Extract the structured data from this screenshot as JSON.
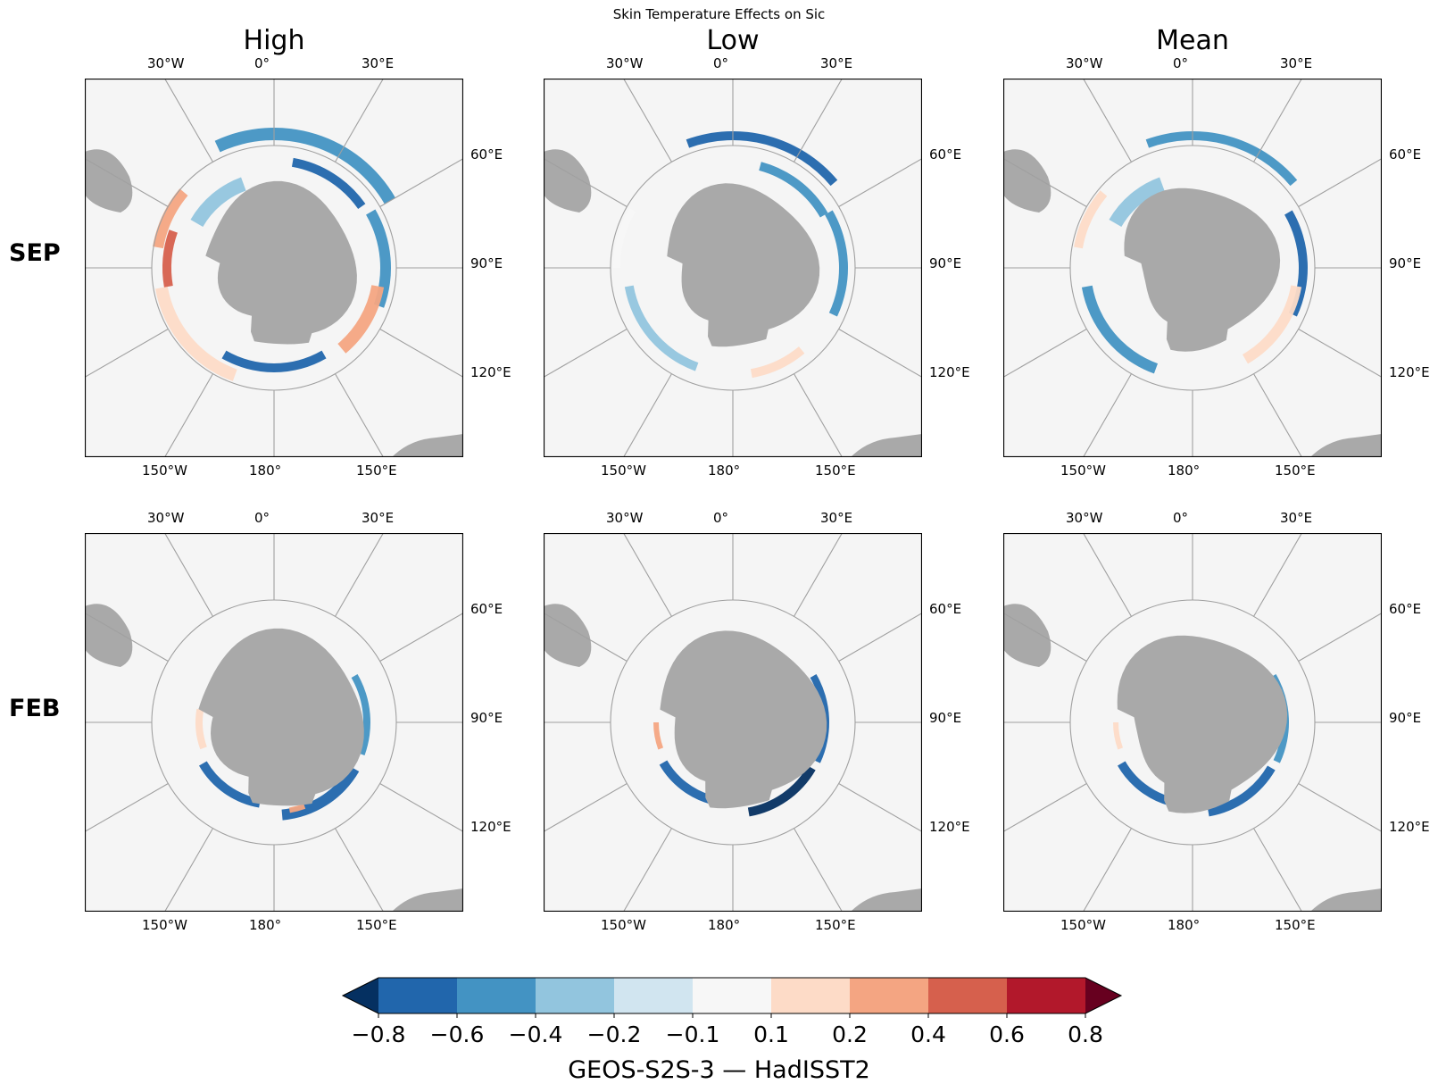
{
  "title": "Skin Temperature Effects on Sic",
  "columns": [
    "High",
    "Low",
    "Mean"
  ],
  "rows": [
    "SEP",
    "FEB"
  ],
  "gridline_labels": {
    "top": [
      "30°W",
      "0°",
      "30°E"
    ],
    "right": [
      "60°E",
      "90°E",
      "120°E"
    ],
    "bottom": [
      "150°W",
      "180°",
      "150°E"
    ]
  },
  "colorbar": {
    "label": "GEOS-S2S-3 — HadISST2",
    "tick_labels": [
      "−0.8",
      "−0.6",
      "−0.4",
      "−0.2",
      "−0.1",
      "0.1",
      "0.2",
      "0.4",
      "0.6",
      "0.8"
    ],
    "levels": [
      -0.8,
      -0.6,
      -0.4,
      -0.2,
      -0.1,
      0.1,
      0.2,
      0.4,
      0.6,
      0.8
    ],
    "colors": [
      "#2166ac",
      "#4393c3",
      "#92c5de",
      "#d1e5f0",
      "#f7f7f7",
      "#fddbc7",
      "#f4a582",
      "#d6604d",
      "#b2182b"
    ],
    "under_color": "#053061",
    "over_color": "#67001f",
    "extend": "both"
  },
  "map_colors": {
    "ocean": "#f5f5f5",
    "land": "#a9a9a9",
    "grid": "#a0a0a0"
  }
}
